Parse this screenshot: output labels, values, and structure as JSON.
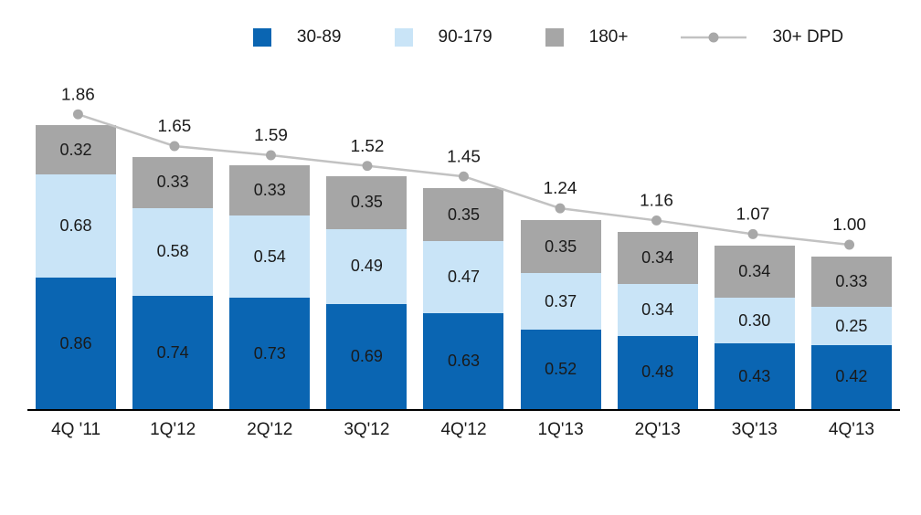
{
  "chart_data": {
    "type": "bar",
    "stacked": true,
    "title": "",
    "xlabel": "",
    "ylabel": "",
    "ylim": [
      0,
      2.0
    ],
    "grid": false,
    "legend_position": "top",
    "value_format": "0.00",
    "categories": [
      "4Q '11",
      "1Q'12",
      "2Q'12",
      "3Q'12",
      "4Q'12",
      "1Q'13",
      "2Q'13",
      "3Q'13",
      "4Q'13"
    ],
    "series": [
      {
        "name": "30-89",
        "color": "#0a65b2",
        "values": [
          0.86,
          0.74,
          0.73,
          0.69,
          0.63,
          0.52,
          0.48,
          0.43,
          0.42
        ]
      },
      {
        "name": "90-179",
        "color": "#c9e4f7",
        "values": [
          0.68,
          0.58,
          0.54,
          0.49,
          0.47,
          0.37,
          0.34,
          0.3,
          0.25
        ]
      },
      {
        "name": "180+",
        "color": "#a6a6a6",
        "values": [
          0.32,
          0.33,
          0.33,
          0.35,
          0.35,
          0.35,
          0.34,
          0.34,
          0.33
        ]
      }
    ],
    "line_series": {
      "name": "30+ DPD",
      "color": "#c2c2c2",
      "marker_color": "#a8a8a8",
      "values": [
        1.86,
        1.65,
        1.59,
        1.52,
        1.45,
        1.24,
        1.16,
        1.07,
        1.0
      ]
    },
    "colors": {
      "axis": "#000000",
      "label_text": "#1a1a1a",
      "background": "#ffffff"
    }
  }
}
